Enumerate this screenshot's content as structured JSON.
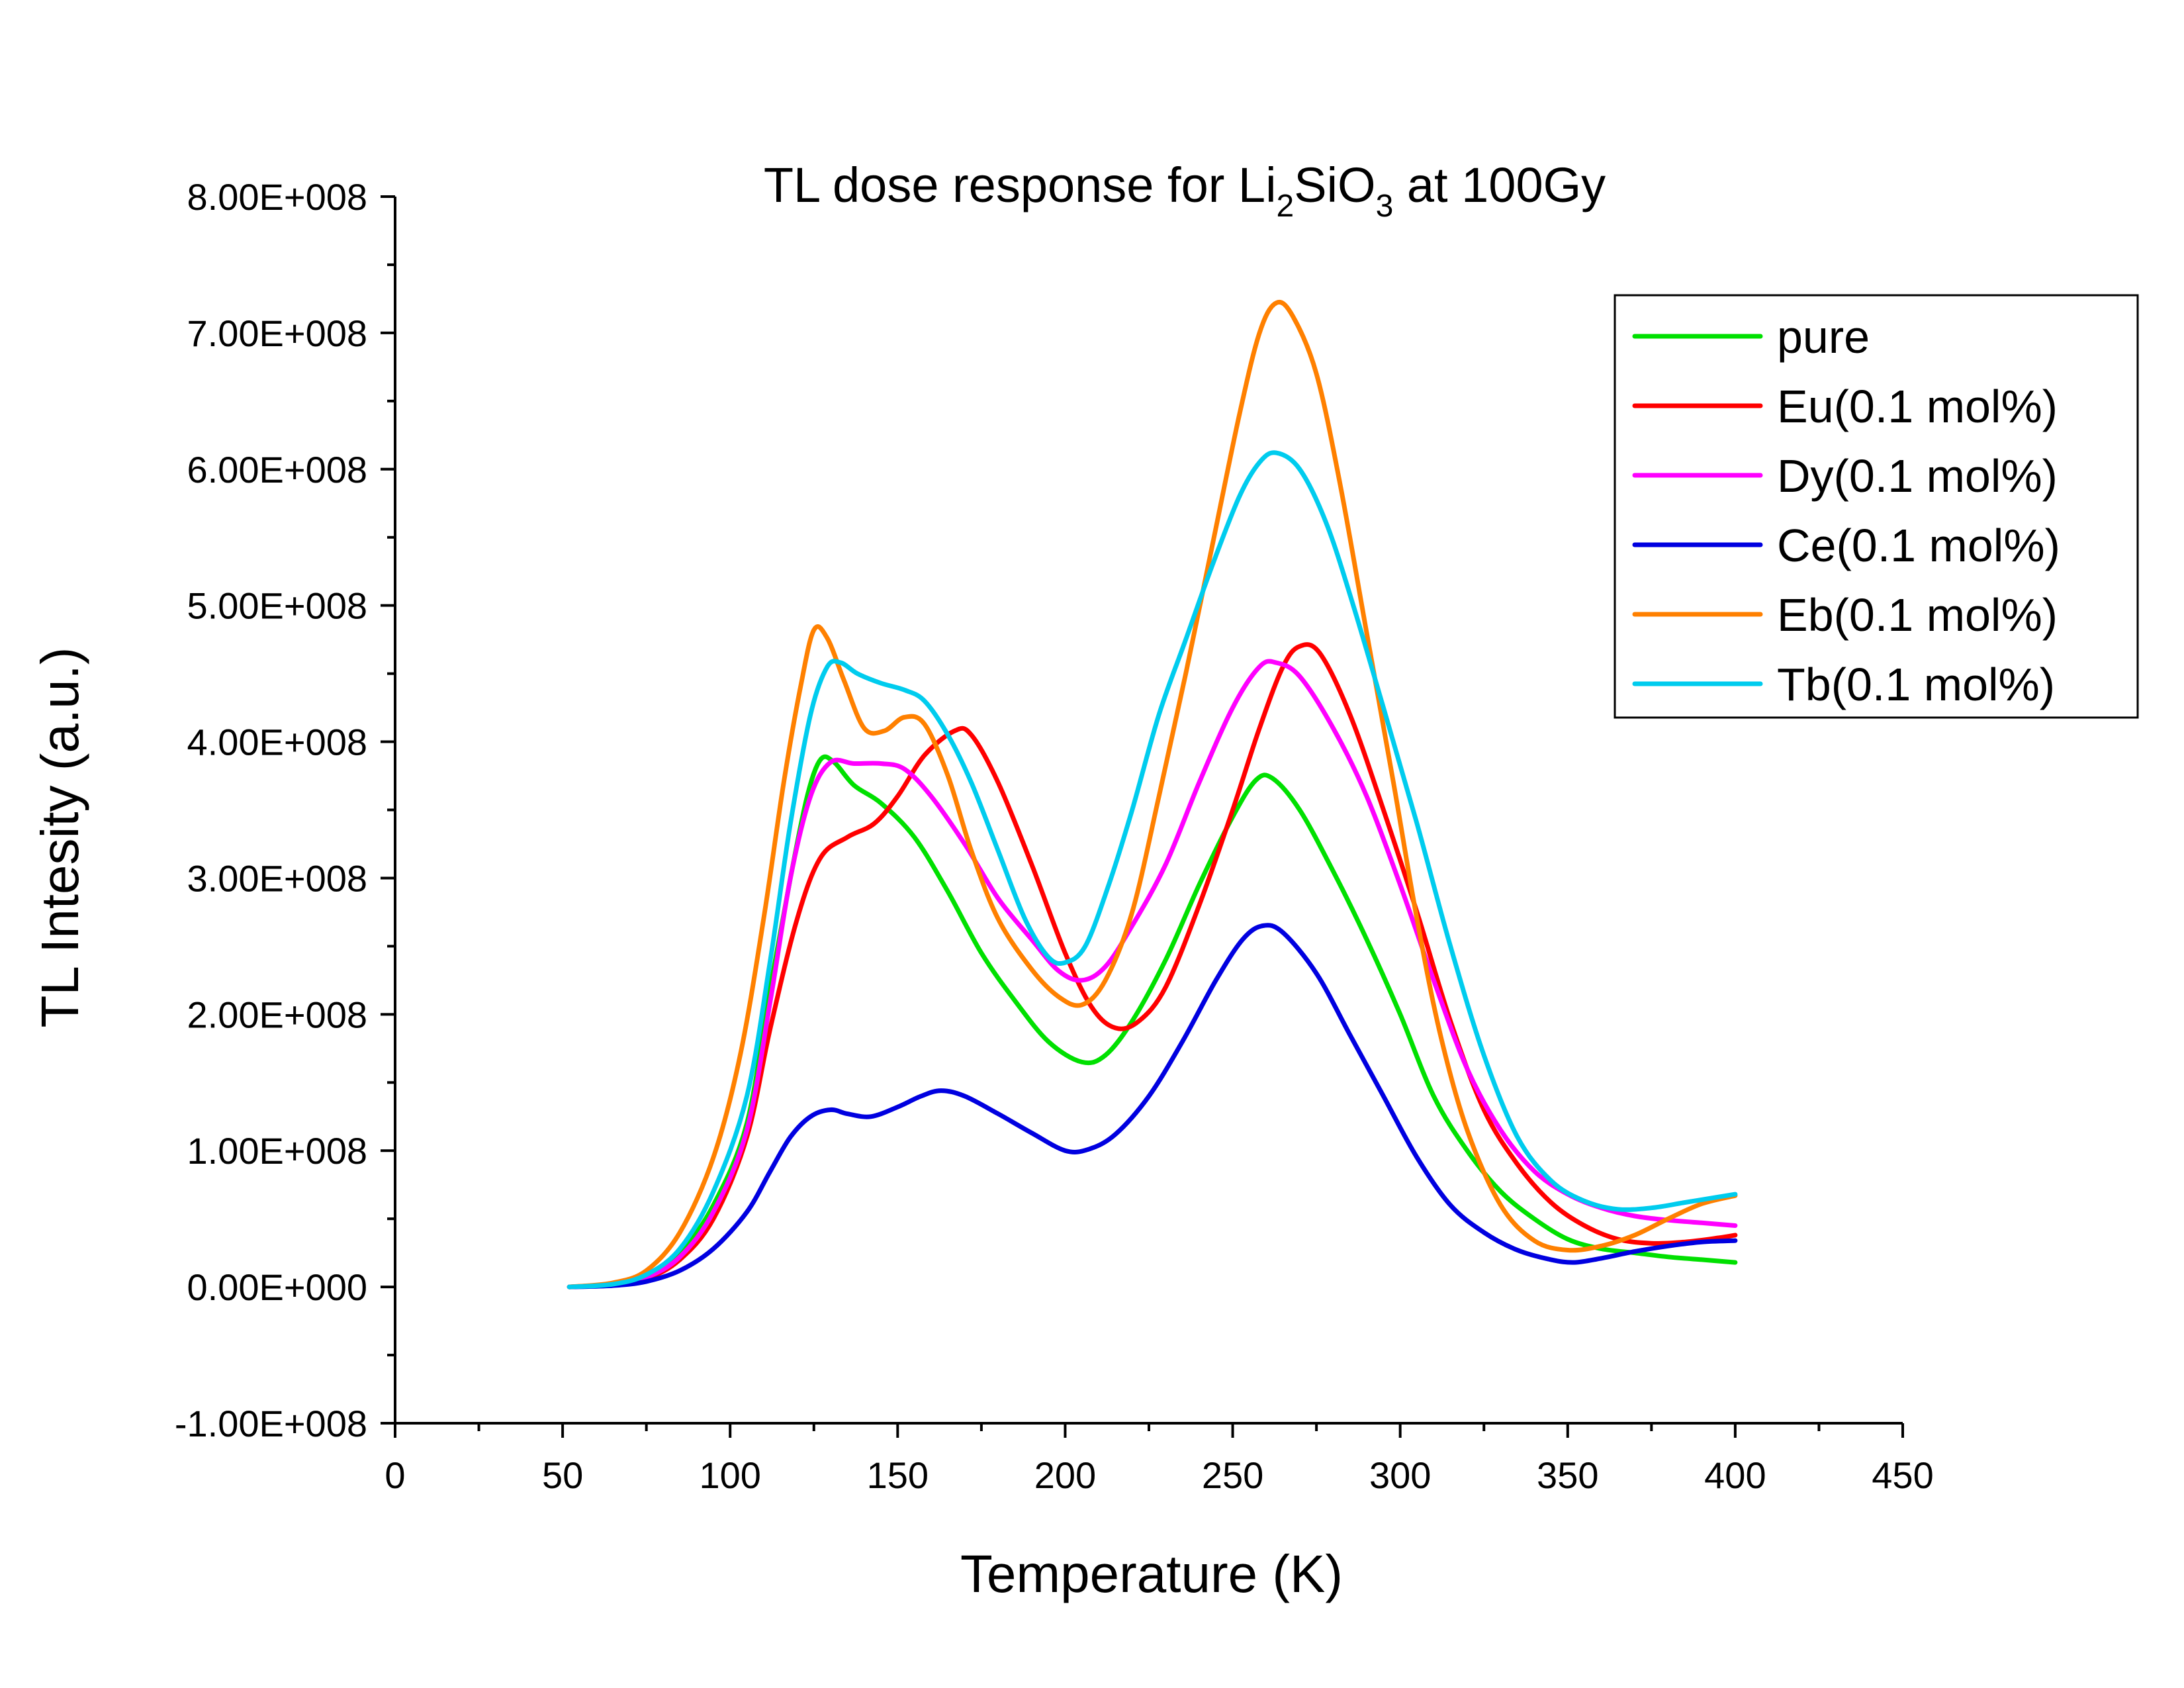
{
  "chart_data": {
    "type": "line",
    "title": {
      "prefix": "TL dose response for Li",
      "sub1": "2",
      "middle": "SiO",
      "sub2": "3",
      "suffix": " at 100Gy"
    },
    "xlabel": "Temperature (K)",
    "ylabel": "TL Intesity (a.u.)",
    "xlim": [
      0,
      450
    ],
    "ylim": [
      -100000000,
      800000000
    ],
    "xticks": [
      "0",
      "50",
      "100",
      "150",
      "200",
      "250",
      "300",
      "350",
      "400",
      "450"
    ],
    "yticks": [
      "-1.00E+008",
      "0.00E+000",
      "1.00E+008",
      "2.00E+008",
      "3.00E+008",
      "4.00E+008",
      "5.00E+008",
      "6.00E+008",
      "7.00E+008",
      "8.00E+008"
    ],
    "grid": false,
    "legend_position": "top-right",
    "series": [
      {
        "name": "pure",
        "color": "#00e000",
        "points": [
          [
            52,
            0
          ],
          [
            65,
            2000000
          ],
          [
            75,
            8000000
          ],
          [
            85,
            25000000
          ],
          [
            95,
            60000000
          ],
          [
            105,
            120000000
          ],
          [
            112,
            220000000
          ],
          [
            118,
            300000000
          ],
          [
            123,
            360000000
          ],
          [
            127,
            387000000
          ],
          [
            131,
            385000000
          ],
          [
            137,
            368000000
          ],
          [
            145,
            355000000
          ],
          [
            155,
            330000000
          ],
          [
            165,
            290000000
          ],
          [
            175,
            245000000
          ],
          [
            185,
            210000000
          ],
          [
            195,
            180000000
          ],
          [
            205,
            165000000
          ],
          [
            212,
            170000000
          ],
          [
            220,
            195000000
          ],
          [
            230,
            240000000
          ],
          [
            240,
            295000000
          ],
          [
            250,
            345000000
          ],
          [
            257,
            372000000
          ],
          [
            262,
            373000000
          ],
          [
            270,
            350000000
          ],
          [
            280,
            305000000
          ],
          [
            290,
            255000000
          ],
          [
            300,
            200000000
          ],
          [
            310,
            140000000
          ],
          [
            320,
            100000000
          ],
          [
            330,
            70000000
          ],
          [
            340,
            50000000
          ],
          [
            350,
            35000000
          ],
          [
            360,
            28000000
          ],
          [
            370,
            25000000
          ],
          [
            380,
            22000000
          ],
          [
            390,
            20000000
          ],
          [
            400,
            18000000
          ]
        ]
      },
      {
        "name": "Eu(0.1 mol%)",
        "color": "#ff0000",
        "points": [
          [
            52,
            0
          ],
          [
            65,
            2000000
          ],
          [
            75,
            6000000
          ],
          [
            85,
            20000000
          ],
          [
            95,
            50000000
          ],
          [
            105,
            110000000
          ],
          [
            112,
            190000000
          ],
          [
            120,
            270000000
          ],
          [
            127,
            315000000
          ],
          [
            135,
            330000000
          ],
          [
            143,
            340000000
          ],
          [
            150,
            360000000
          ],
          [
            158,
            390000000
          ],
          [
            167,
            408000000
          ],
          [
            172,
            405000000
          ],
          [
            180,
            370000000
          ],
          [
            190,
            310000000
          ],
          [
            200,
            245000000
          ],
          [
            208,
            205000000
          ],
          [
            215,
            190000000
          ],
          [
            222,
            195000000
          ],
          [
            230,
            220000000
          ],
          [
            240,
            280000000
          ],
          [
            250,
            350000000
          ],
          [
            258,
            410000000
          ],
          [
            265,
            455000000
          ],
          [
            270,
            470000000
          ],
          [
            276,
            465000000
          ],
          [
            285,
            420000000
          ],
          [
            295,
            350000000
          ],
          [
            305,
            275000000
          ],
          [
            315,
            195000000
          ],
          [
            325,
            130000000
          ],
          [
            335,
            90000000
          ],
          [
            345,
            62000000
          ],
          [
            355,
            45000000
          ],
          [
            365,
            35000000
          ],
          [
            375,
            32000000
          ],
          [
            385,
            33000000
          ],
          [
            395,
            36000000
          ],
          [
            400,
            38000000
          ]
        ]
      },
      {
        "name": "Dy(0.1 mol%)",
        "color": "#ff00ff",
        "points": [
          [
            52,
            0
          ],
          [
            65,
            2000000
          ],
          [
            75,
            7000000
          ],
          [
            85,
            22000000
          ],
          [
            95,
            55000000
          ],
          [
            105,
            115000000
          ],
          [
            112,
            210000000
          ],
          [
            118,
            300000000
          ],
          [
            124,
            360000000
          ],
          [
            130,
            385000000
          ],
          [
            137,
            384000000
          ],
          [
            145,
            384000000
          ],
          [
            152,
            380000000
          ],
          [
            160,
            360000000
          ],
          [
            170,
            325000000
          ],
          [
            180,
            285000000
          ],
          [
            190,
            255000000
          ],
          [
            198,
            232000000
          ],
          [
            205,
            225000000
          ],
          [
            212,
            235000000
          ],
          [
            220,
            265000000
          ],
          [
            230,
            310000000
          ],
          [
            240,
            370000000
          ],
          [
            250,
            425000000
          ],
          [
            258,
            455000000
          ],
          [
            263,
            458000000
          ],
          [
            270,
            448000000
          ],
          [
            280,
            410000000
          ],
          [
            290,
            360000000
          ],
          [
            300,
            295000000
          ],
          [
            310,
            225000000
          ],
          [
            320,
            160000000
          ],
          [
            330,
            115000000
          ],
          [
            340,
            85000000
          ],
          [
            350,
            68000000
          ],
          [
            360,
            58000000
          ],
          [
            370,
            52000000
          ],
          [
            380,
            49000000
          ],
          [
            390,
            47000000
          ],
          [
            400,
            45000000
          ]
        ]
      },
      {
        "name": "Ce(0.1 mol%)",
        "color": "#0000e0",
        "points": [
          [
            52,
            0
          ],
          [
            65,
            1000000
          ],
          [
            75,
            4000000
          ],
          [
            85,
            12000000
          ],
          [
            95,
            28000000
          ],
          [
            105,
            55000000
          ],
          [
            112,
            85000000
          ],
          [
            118,
            110000000
          ],
          [
            124,
            125000000
          ],
          [
            130,
            130000000
          ],
          [
            135,
            127000000
          ],
          [
            142,
            125000000
          ],
          [
            150,
            132000000
          ],
          [
            157,
            140000000
          ],
          [
            163,
            144000000
          ],
          [
            170,
            140000000
          ],
          [
            180,
            127000000
          ],
          [
            190,
            113000000
          ],
          [
            200,
            100000000
          ],
          [
            207,
            101000000
          ],
          [
            215,
            112000000
          ],
          [
            225,
            140000000
          ],
          [
            235,
            180000000
          ],
          [
            245,
            225000000
          ],
          [
            253,
            255000000
          ],
          [
            259,
            265000000
          ],
          [
            265,
            260000000
          ],
          [
            275,
            230000000
          ],
          [
            285,
            185000000
          ],
          [
            295,
            140000000
          ],
          [
            305,
            95000000
          ],
          [
            315,
            60000000
          ],
          [
            325,
            40000000
          ],
          [
            335,
            27000000
          ],
          [
            345,
            20000000
          ],
          [
            352,
            18000000
          ],
          [
            360,
            21000000
          ],
          [
            370,
            26000000
          ],
          [
            380,
            30000000
          ],
          [
            390,
            33000000
          ],
          [
            400,
            34000000
          ]
        ]
      },
      {
        "name": "Eb(0.1 mol%)",
        "color": "#ff8000",
        "points": [
          [
            52,
            0
          ],
          [
            65,
            3000000
          ],
          [
            75,
            12000000
          ],
          [
            85,
            40000000
          ],
          [
            95,
            95000000
          ],
          [
            103,
            170000000
          ],
          [
            110,
            270000000
          ],
          [
            116,
            370000000
          ],
          [
            121,
            440000000
          ],
          [
            125,
            482000000
          ],
          [
            129,
            476000000
          ],
          [
            134,
            445000000
          ],
          [
            140,
            410000000
          ],
          [
            146,
            408000000
          ],
          [
            152,
            418000000
          ],
          [
            158,
            413000000
          ],
          [
            165,
            375000000
          ],
          [
            172,
            320000000
          ],
          [
            180,
            270000000
          ],
          [
            190,
            233000000
          ],
          [
            198,
            213000000
          ],
          [
            205,
            207000000
          ],
          [
            212,
            225000000
          ],
          [
            220,
            275000000
          ],
          [
            228,
            360000000
          ],
          [
            236,
            450000000
          ],
          [
            244,
            545000000
          ],
          [
            252,
            640000000
          ],
          [
            258,
            700000000
          ],
          [
            263,
            722000000
          ],
          [
            268,
            712000000
          ],
          [
            275,
            670000000
          ],
          [
            282,
            590000000
          ],
          [
            290,
            480000000
          ],
          [
            298,
            370000000
          ],
          [
            305,
            270000000
          ],
          [
            312,
            185000000
          ],
          [
            320,
            115000000
          ],
          [
            330,
            60000000
          ],
          [
            340,
            34000000
          ],
          [
            350,
            27000000
          ],
          [
            360,
            30000000
          ],
          [
            370,
            38000000
          ],
          [
            380,
            50000000
          ],
          [
            390,
            61000000
          ],
          [
            400,
            67000000
          ]
        ]
      },
      {
        "name": "Tb(0.1 mol%)",
        "color": "#00ccee",
        "points": [
          [
            52,
            0
          ],
          [
            65,
            2000000
          ],
          [
            75,
            9000000
          ],
          [
            85,
            28000000
          ],
          [
            95,
            70000000
          ],
          [
            105,
            140000000
          ],
          [
            112,
            240000000
          ],
          [
            118,
            340000000
          ],
          [
            124,
            420000000
          ],
          [
            129,
            455000000
          ],
          [
            133,
            458000000
          ],
          [
            138,
            450000000
          ],
          [
            145,
            443000000
          ],
          [
            152,
            438000000
          ],
          [
            158,
            430000000
          ],
          [
            165,
            405000000
          ],
          [
            172,
            370000000
          ],
          [
            180,
            320000000
          ],
          [
            188,
            270000000
          ],
          [
            195,
            242000000
          ],
          [
            200,
            238000000
          ],
          [
            206,
            250000000
          ],
          [
            213,
            295000000
          ],
          [
            220,
            350000000
          ],
          [
            228,
            420000000
          ],
          [
            236,
            475000000
          ],
          [
            244,
            530000000
          ],
          [
            252,
            580000000
          ],
          [
            258,
            605000000
          ],
          [
            263,
            612000000
          ],
          [
            270,
            600000000
          ],
          [
            278,
            560000000
          ],
          [
            286,
            500000000
          ],
          [
            295,
            425000000
          ],
          [
            305,
            340000000
          ],
          [
            315,
            250000000
          ],
          [
            325,
            170000000
          ],
          [
            335,
            110000000
          ],
          [
            345,
            78000000
          ],
          [
            355,
            63000000
          ],
          [
            365,
            57000000
          ],
          [
            375,
            58000000
          ],
          [
            385,
            62000000
          ],
          [
            395,
            66000000
          ],
          [
            400,
            68000000
          ]
        ]
      }
    ]
  }
}
